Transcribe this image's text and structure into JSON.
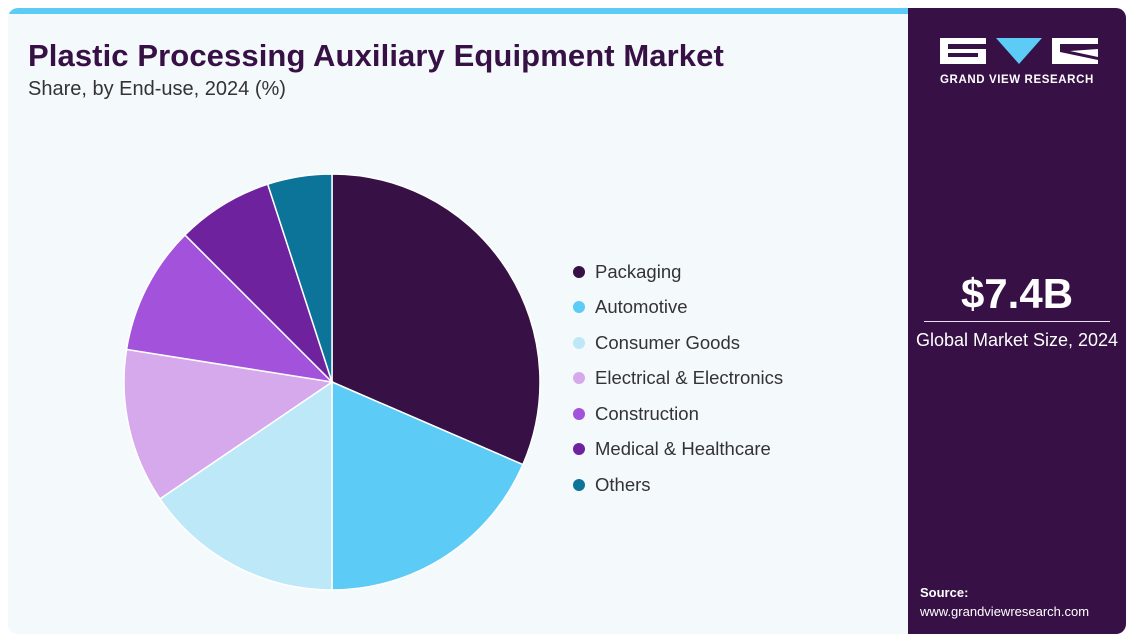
{
  "header": {
    "title": "Plastic Processing Auxiliary Equipment Market",
    "subtitle": "Share, by End-use, 2024 (%)"
  },
  "brand": {
    "logo_text": "GRAND VIEW RESEARCH"
  },
  "summary": {
    "market_size": "$7.4B",
    "market_size_label": "Global Market Size, 2024"
  },
  "source": {
    "label": "Source:",
    "url": "www.grandviewresearch.com"
  },
  "colors": {
    "brand_dark": "#371145",
    "accent": "#5ccbf5",
    "background": "#f4f9fc"
  },
  "chart_data": {
    "type": "pie",
    "title": "Plastic Processing Auxiliary Equipment Market",
    "subtitle": "Share, by End-use, 2024 (%)",
    "legend_position": "right",
    "categories": [
      "Packaging",
      "Automotive",
      "Consumer Goods",
      "Electrical & Electronics",
      "Construction",
      "Medical & Healthcare",
      "Others"
    ],
    "values": [
      31.5,
      18.5,
      15.5,
      12.0,
      10.0,
      7.5,
      5.0
    ],
    "colors": [
      "#371145",
      "#5ccbf5",
      "#bde8f8",
      "#d6a8ec",
      "#a352db",
      "#6f229e",
      "#0c7399"
    ]
  }
}
